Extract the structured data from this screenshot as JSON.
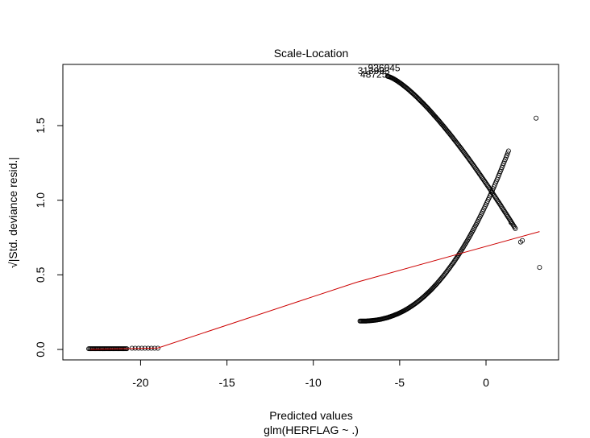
{
  "chart_data": {
    "type": "scatter",
    "title": "Scale-Location",
    "xlabel": "Predicted values",
    "sublabel": "glm(HERFLAG ~ .)",
    "ylabel": "√|Std. deviance resid.|",
    "xlim": [
      -24.5,
      4.2
    ],
    "ylim": [
      -0.07,
      1.91
    ],
    "xticks": [
      -20,
      -15,
      -10,
      -5,
      0
    ],
    "xtick_labels": [
      "-20",
      "-15",
      "-10",
      "-5",
      "0"
    ],
    "yticks": [
      0.0,
      0.5,
      1.0,
      1.5
    ],
    "ytick_labels": [
      "0.0",
      "0.5",
      "1.0",
      "1.5"
    ],
    "grid": false,
    "point_labels": [
      {
        "text": "313993",
        "x": -6.5,
        "y": 1.845
      },
      {
        "text": "936045",
        "x": -5.9,
        "y": 1.865
      },
      {
        "text": "48725",
        "x": -6.5,
        "y": 1.82
      }
    ],
    "smooth_line": {
      "color": "#cc0000",
      "x": [
        -22.9,
        -19.0,
        -7.5,
        3.1
      ],
      "y": [
        0.0,
        0.01,
        0.45,
        0.79
      ]
    },
    "points": {
      "clusters": [
        {
          "kind": "flat",
          "x_from": -23.0,
          "x_to": -20.8,
          "y": 0.005,
          "n": 40
        },
        {
          "kind": "flat",
          "x_from": -20.5,
          "x_to": -19.0,
          "y": 0.008,
          "n": 9
        }
      ],
      "upper_curve": {
        "x_from": -5.7,
        "x_to": 1.7,
        "y_at_min": 1.83,
        "y_at_max": 0.81,
        "shape": 1.35,
        "n": 170
      },
      "lower_curve": {
        "x_from": -7.3,
        "x_to": 1.3,
        "y_at_min": 0.19,
        "y_at_max": 1.33,
        "shape": 2.3,
        "n": 185
      },
      "outliers": [
        {
          "x": 2.9,
          "y": 1.55
        },
        {
          "x": 3.1,
          "y": 0.55
        },
        {
          "x": 2.0,
          "y": 0.72
        },
        {
          "x": 2.1,
          "y": 0.73
        },
        {
          "x": 1.45,
          "y": 0.85
        }
      ]
    }
  }
}
